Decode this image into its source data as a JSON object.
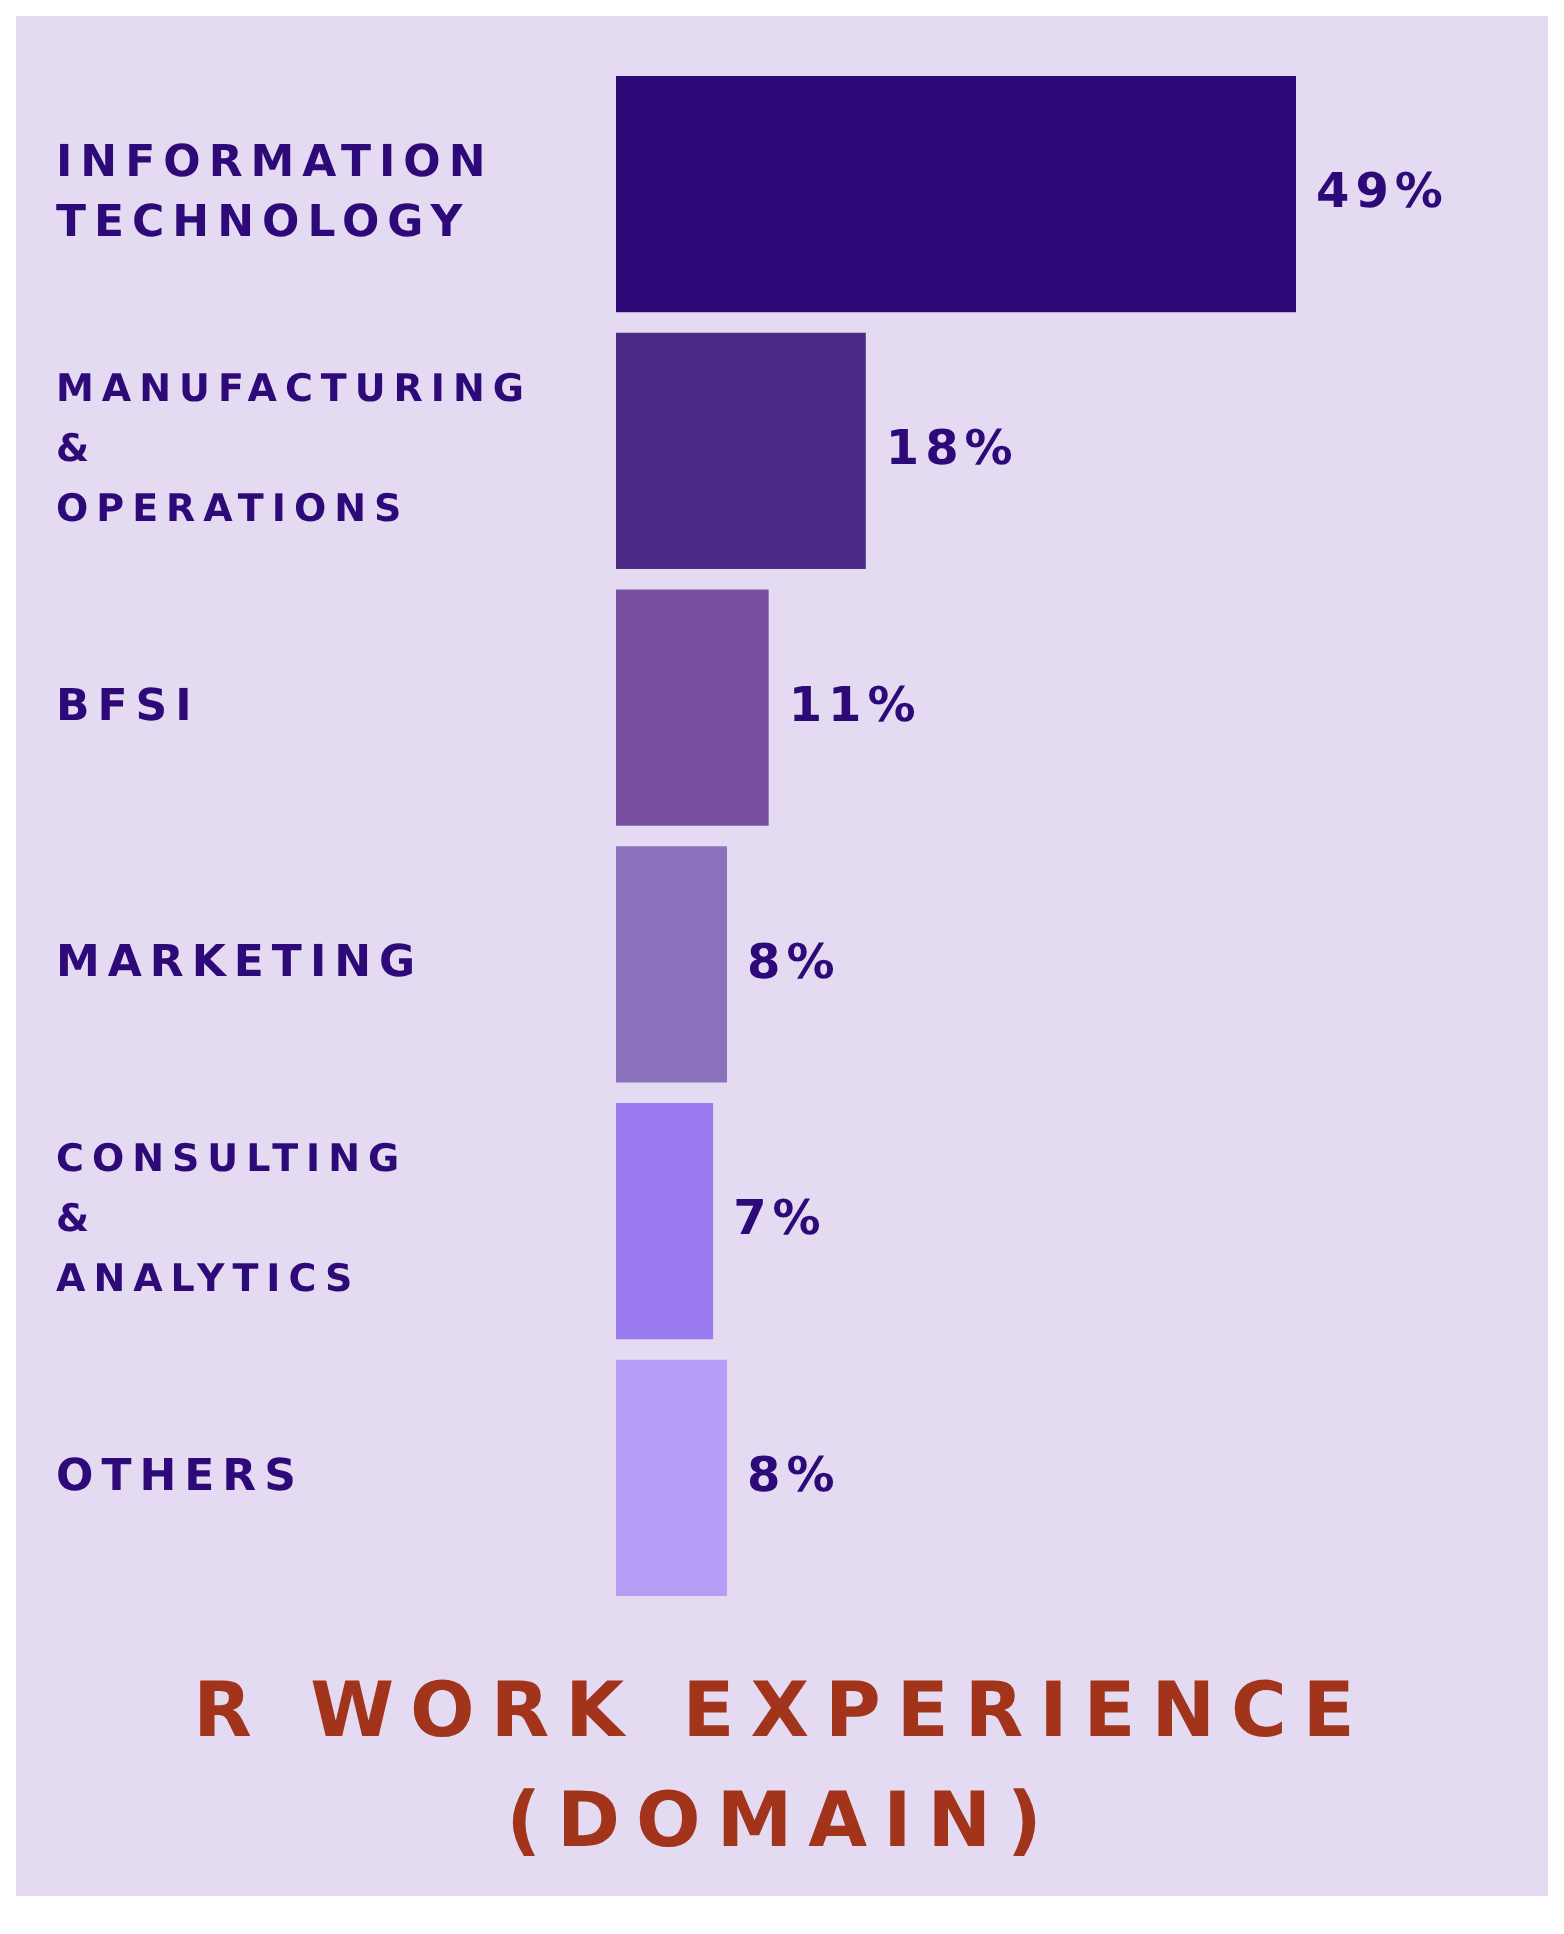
{
  "chart_data": {
    "type": "bar",
    "orientation": "horizontal",
    "title": "R WORK EXPERIENCE",
    "subtitle": "(DOMAIN)",
    "categories": [
      "INFORMATION TECHNOLOGY",
      "MANUFACTURING & OPERATIONS",
      "BFSI",
      "MARKETING",
      "CONSULTING & ANALYTICS",
      "OTHERS"
    ],
    "values": [
      49,
      18,
      11,
      8,
      7,
      8
    ],
    "value_labels": [
      "49%",
      "18%",
      "11%",
      "8%",
      "7%",
      "8%"
    ],
    "colors": [
      "#2e0a78",
      "#4a2a86",
      "#76509e",
      "#8c72bd",
      "#9b7cf0",
      "#b59cf5"
    ]
  }
}
